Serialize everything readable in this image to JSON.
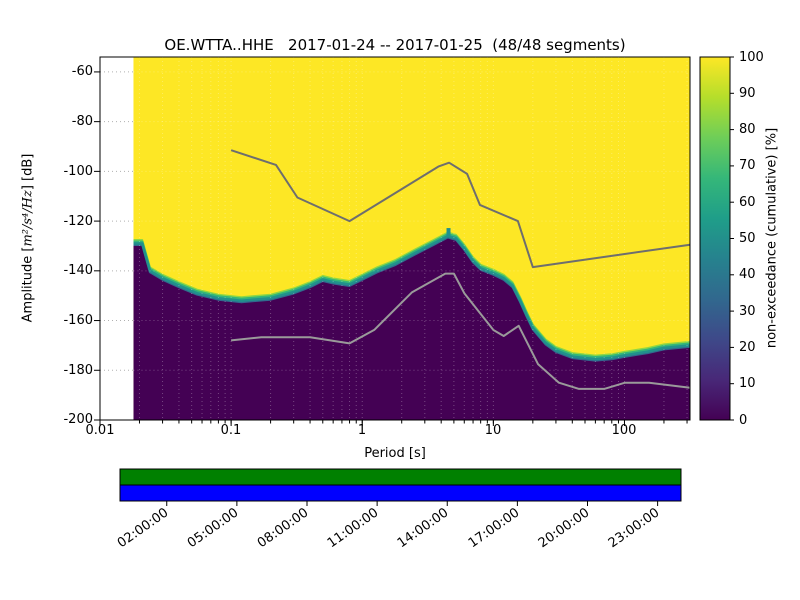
{
  "title": "OE.WTTA..HHE   2017-01-24 -- 2017-01-25  (48/48 segments)",
  "axes": {
    "xlabel": "Period [s]",
    "ylabel_prefix": "Amplitude [",
    "ylabel_math": "m²/s⁴/Hz",
    "ylabel_suffix": "] [dB]",
    "x_ticks": [
      "0.01",
      "0.1",
      "1",
      "10",
      "100"
    ],
    "y_ticks": [
      "-60",
      "-80",
      "-100",
      "-120",
      "-140",
      "-160",
      "-180",
      "-200"
    ]
  },
  "colorbar": {
    "label": "non-exceedance (cumulative) [%]",
    "ticks": [
      "100",
      "90",
      "80",
      "70",
      "60",
      "50",
      "40",
      "30",
      "20",
      "10",
      "0"
    ],
    "colors": [
      "#fde725",
      "#b5de2b",
      "#6ece58",
      "#35b779",
      "#1f9e89",
      "#26828e",
      "#31688e",
      "#3e4989",
      "#482878",
      "#440154"
    ]
  },
  "timebar": {
    "labels": [
      "02:00:00",
      "05:00:00",
      "08:00:00",
      "11:00:00",
      "14:00:00",
      "17:00:00",
      "20:00:00",
      "23:00:00"
    ],
    "green": "#008000",
    "blue": "#0000ff"
  },
  "chart_data": {
    "type": "heatmap",
    "title": "OE.WTTA..HHE 2017-01-24 -- 2017-01-25 (48/48 segments)",
    "xlabel": "Period [s]",
    "ylabel": "Amplitude [m^2/s^4/Hz] [dB]",
    "colorbar_label": "non-exceedance (cumulative) [%]",
    "grid": true,
    "legend_position": "none",
    "x_axis": {
      "scale": "log",
      "range": [
        0.01,
        316
      ],
      "ticks": [
        0.01,
        0.1,
        1,
        10,
        100
      ]
    },
    "y_axis": {
      "range": [
        -200,
        -54
      ],
      "ticks": [
        -60,
        -80,
        -100,
        -120,
        -140,
        -160,
        -180,
        -200
      ]
    },
    "data_min_period": 0.018,
    "cumulative_mode_boundary": {
      "comment": "Boundary between 100% non-exceedance (yellow, above) and 0% (dark purple, below); thin viridis transition band along it",
      "periods": [
        0.018,
        0.021,
        0.024,
        0.03,
        0.04,
        0.055,
        0.08,
        0.12,
        0.2,
        0.3,
        0.4,
        0.5,
        0.6,
        0.8,
        1.0,
        1.3,
        1.8,
        2.5,
        3.5,
        4.5,
        5.2,
        6.0,
        7.0,
        8.0,
        10,
        12,
        14,
        16,
        18,
        20,
        25,
        30,
        40,
        60,
        80,
        100,
        150,
        200,
        316
      ],
      "db": [
        -129,
        -129,
        -140,
        -143,
        -146,
        -149,
        -151,
        -152,
        -151,
        -148.5,
        -146,
        -143.5,
        -144.5,
        -145.5,
        -143,
        -140,
        -137,
        -133,
        -129,
        -126,
        -127,
        -131,
        -136,
        -139,
        -141,
        -143,
        -146,
        -152,
        -158,
        -163,
        -169,
        -172,
        -174.5,
        -175.5,
        -175,
        -174,
        -172.5,
        -171,
        -170
      ],
      "band_spikes": [
        {
          "period": 4.55,
          "db_top": -122.8
        }
      ]
    },
    "noise_models": {
      "nhnm": {
        "color": "#6e6e6e",
        "periods": [
          0.1,
          0.22,
          0.32,
          0.8,
          3.8,
          4.6,
          6.3,
          7.9,
          15.4,
          20,
          316
        ],
        "db": [
          -91.5,
          -97.4,
          -110.5,
          -120,
          -98.1,
          -96.5,
          -101,
          -113.5,
          -120,
          -138.5,
          -129.5
        ]
      },
      "nlnm": {
        "color": "#9a9a9a",
        "periods": [
          0.1,
          0.17,
          0.4,
          0.8,
          1.24,
          2.4,
          4.3,
          5,
          6,
          10,
          12,
          15.6,
          21.9,
          31.6,
          45,
          70,
          101,
          154,
          316
        ],
        "db": [
          -168,
          -166.7,
          -166.7,
          -169.2,
          -163.7,
          -148.6,
          -141.1,
          -141.1,
          -149,
          -163.8,
          -166.2,
          -162.1,
          -177.5,
          -185,
          -187.5,
          -187.5,
          -185,
          -185,
          -187
        ]
      }
    },
    "colors": {
      "high": "#fde725",
      "low": "#440154",
      "band": [
        "#90d743",
        "#35b779",
        "#21918c",
        "#31688e"
      ]
    }
  }
}
